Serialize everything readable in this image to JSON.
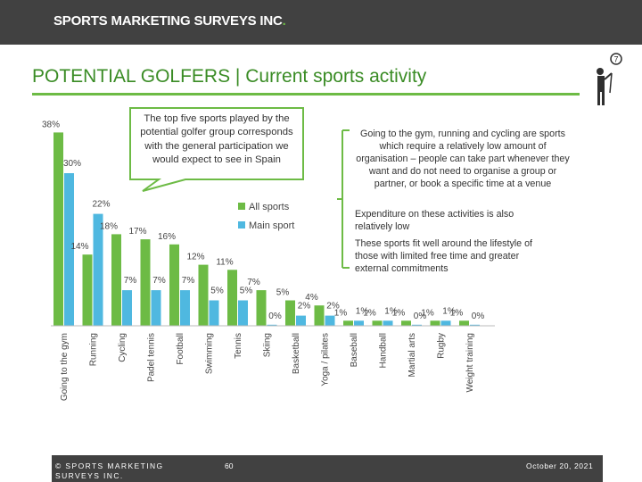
{
  "header": {
    "logo_text": "SPORTS MARKETING SURVEYS INC",
    "logo_dot": "."
  },
  "title": "POTENTIAL GOLFERS | Current sports activity",
  "callout": "The top five sports played by the potential golfer group corresponds with the general participation we would expect to see in Spain",
  "notes": [
    "Going to the gym, running and cycling are sports which require a relatively low amount of organisation – people can take part whenever they want and do not need to organise a group or partner, or book a specific time at a venue",
    "Expenditure on these activities is also relatively low",
    "These sports fit well around the lifestyle of those with limited free time and greater external commitments"
  ],
  "colors": {
    "accent": "#6dbb45",
    "all_sports": "#6dbb45",
    "main_sport": "#4fb8e0",
    "header": "#414141",
    "title": "#3a8c25"
  },
  "icons": [
    "golfer-icon"
  ],
  "chart_data": {
    "type": "bar",
    "title": "",
    "xlabel": "",
    "ylabel": "",
    "ylim": [
      0,
      40
    ],
    "categories": [
      "Going to the gym",
      "Running",
      "Cycling",
      "Padel tennis",
      "Football",
      "Swimming",
      "Tennis",
      "Skiing",
      "Basketball",
      "Yoga / pilates",
      "Baseball",
      "Handball",
      "Martial arts",
      "Rugby",
      "Weight training"
    ],
    "series": [
      {
        "name": "All sports",
        "values": [
          38,
          14,
          18,
          17,
          16,
          12,
          11,
          7,
          5,
          4,
          1,
          1,
          1,
          1,
          1
        ],
        "labels": [
          "38%",
          "14%",
          "18%",
          "17%",
          "16%",
          "12%",
          "11%",
          "7%",
          "5%",
          "4%",
          "1%",
          "1%",
          "1%",
          "1%",
          "1%"
        ]
      },
      {
        "name": "Main sport",
        "values": [
          30,
          22,
          7,
          7,
          7,
          5,
          5,
          0,
          2,
          2,
          1,
          1,
          0,
          1,
          0
        ],
        "labels": [
          "30%",
          "22%",
          "7%",
          "7%",
          "7%",
          "5%",
          "5%",
          "0%",
          "2%",
          "2%",
          "1%",
          "1%",
          "0%",
          "1%",
          "0%"
        ]
      }
    ],
    "legend_position": "top-right"
  },
  "footer": {
    "copyright": "© SPORTS MARKETING SURVEYS INC.",
    "page": "60",
    "date": "October 20, 2021"
  }
}
